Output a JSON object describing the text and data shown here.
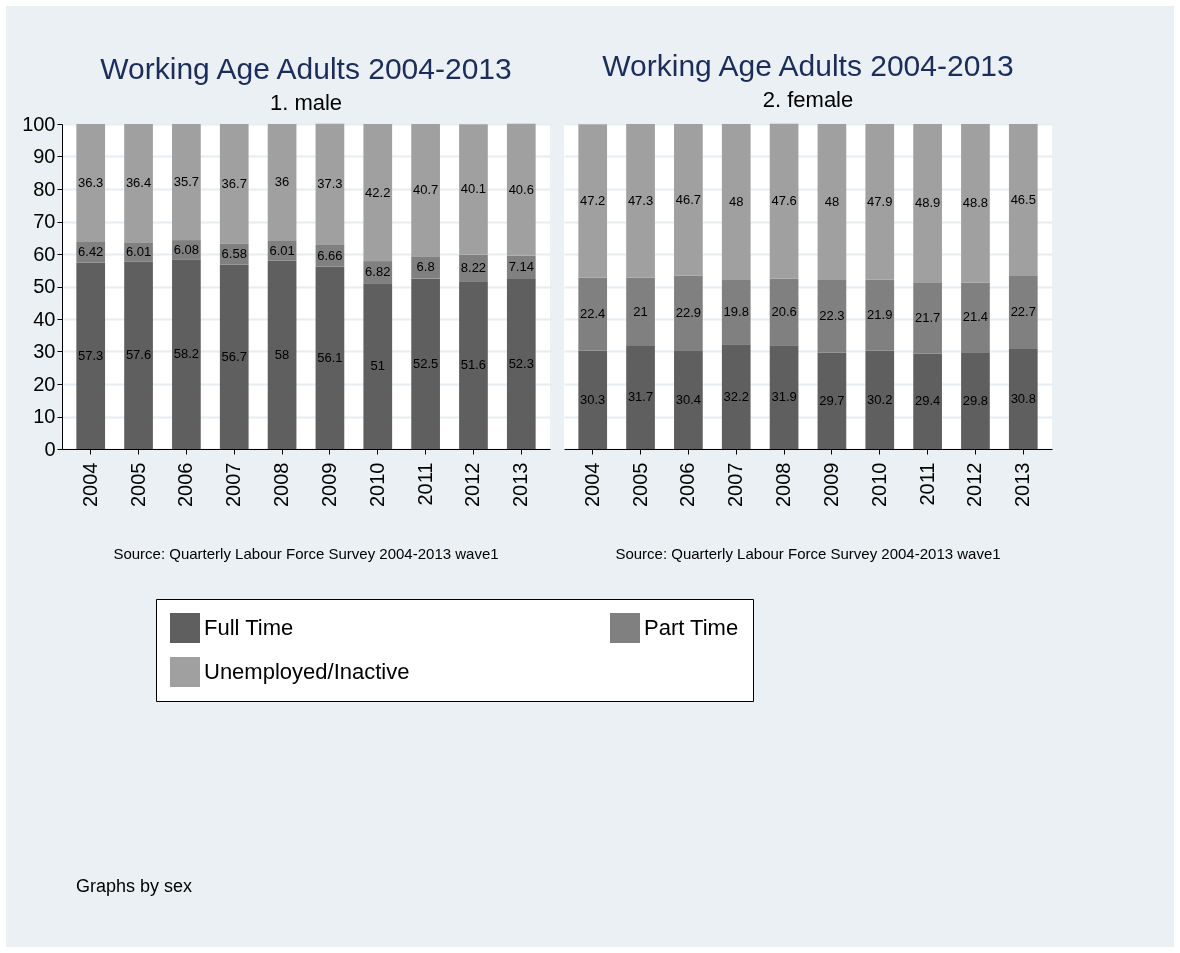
{
  "chart_data": [
    {
      "type": "bar",
      "stacked": true,
      "title": "Working Age Adults 2004-2013",
      "subtitle": "1. male",
      "categories": [
        "2004",
        "2005",
        "2006",
        "2007",
        "2008",
        "2009",
        "2010",
        "2011",
        "2012",
        "2013"
      ],
      "series": [
        {
          "name": "Full Time",
          "color": "#5f5f5f",
          "values": [
            57.3,
            57.6,
            58.2,
            56.7,
            58,
            56.1,
            51,
            52.5,
            51.6,
            52.3
          ]
        },
        {
          "name": "Part Time",
          "color": "#808080",
          "values": [
            6.42,
            6.01,
            6.08,
            6.58,
            6.01,
            6.66,
            6.82,
            6.8,
            8.22,
            7.14
          ]
        },
        {
          "name": "Unemployed/Inactive",
          "color": "#a0a0a0",
          "values": [
            36.3,
            36.4,
            35.7,
            36.7,
            36,
            37.3,
            42.2,
            40.7,
            40.1,
            40.6
          ]
        }
      ],
      "ylim": [
        0,
        100
      ],
      "yticks": [
        0,
        10,
        20,
        30,
        40,
        50,
        60,
        70,
        80,
        90,
        100
      ],
      "grid": "y",
      "data_labels": true,
      "legend": "bottom",
      "annotations": [
        "Source: Quarterly Labour Force Survey 2004-2013 wave1",
        "Graphs by sex"
      ]
    },
    {
      "type": "bar",
      "stacked": true,
      "title": "Working Age Adults 2004-2013",
      "subtitle": "2. female",
      "categories": [
        "2004",
        "2005",
        "2006",
        "2007",
        "2008",
        "2009",
        "2010",
        "2011",
        "2012",
        "2013"
      ],
      "series": [
        {
          "name": "Full Time",
          "color": "#5f5f5f",
          "values": [
            30.3,
            31.7,
            30.4,
            32.2,
            31.9,
            29.7,
            30.2,
            29.4,
            29.8,
            30.8
          ]
        },
        {
          "name": "Part Time",
          "color": "#808080",
          "values": [
            22.4,
            21,
            22.9,
            19.8,
            20.6,
            22.3,
            21.9,
            21.7,
            21.4,
            22.7
          ]
        },
        {
          "name": "Unemployed/Inactive",
          "color": "#a0a0a0",
          "values": [
            47.2,
            47.3,
            46.7,
            48,
            47.6,
            48,
            47.9,
            48.9,
            48.8,
            46.5
          ]
        }
      ],
      "ylim": [
        0,
        100
      ],
      "yticks": [
        0,
        10,
        20,
        30,
        40,
        50,
        60,
        70,
        80,
        90,
        100
      ],
      "grid": "y",
      "data_labels": true,
      "legend": "bottom",
      "tick_labels": "x",
      "annotations": [
        "Source: Quarterly Labour Force Survey 2004-2013 wave1"
      ]
    }
  ]
}
